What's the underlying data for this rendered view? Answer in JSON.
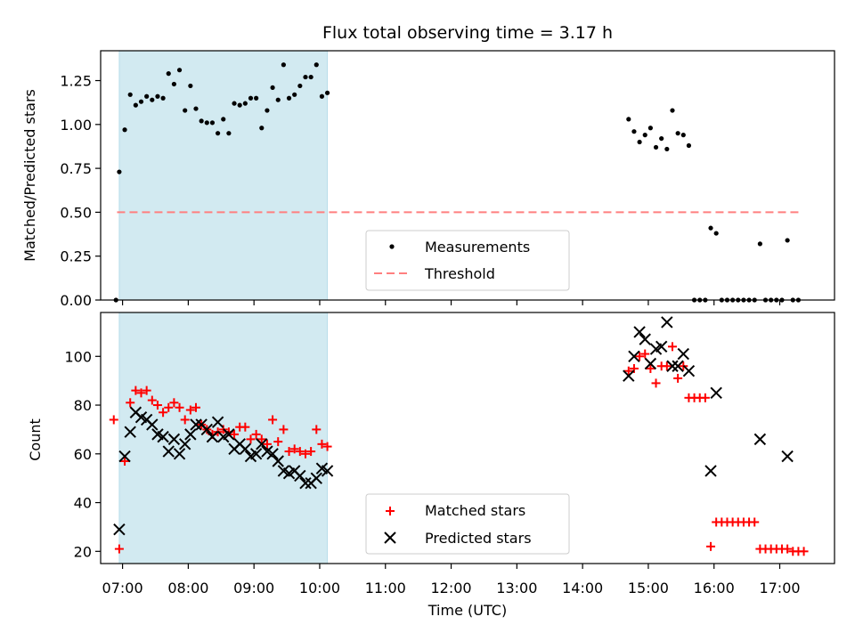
{
  "chart_data": [
    {
      "type": "scatter",
      "title": "Flux total observing time = 3.17 h",
      "xlabel": "",
      "ylabel": "Matched/Predicted stars",
      "xlim": [
        "06:40",
        "17:50"
      ],
      "ylim": [
        0,
        1.42
      ],
      "yticks": [
        "0.00",
        "0.25",
        "0.50",
        "0.75",
        "1.00",
        "1.25"
      ],
      "shaded_span": [
        "06:57",
        "10:07"
      ],
      "threshold": 0.5,
      "threshold_range": [
        "06:55",
        "17:20"
      ],
      "threshold_color": "#ff7f7f",
      "span_color": "#add8e6",
      "legend_position": "lower center",
      "legend": [
        "Measurements",
        "Threshold"
      ],
      "series": [
        {
          "name": "Measurements",
          "marker": "dot",
          "color": "#000000",
          "points": [
            [
              "06:54",
              0.0
            ],
            [
              "06:57",
              0.73
            ],
            [
              "07:02",
              0.97
            ],
            [
              "07:07",
              1.17
            ],
            [
              "07:12",
              1.11
            ],
            [
              "07:17",
              1.13
            ],
            [
              "07:22",
              1.16
            ],
            [
              "07:27",
              1.14
            ],
            [
              "07:32",
              1.16
            ],
            [
              "07:37",
              1.15
            ],
            [
              "07:42",
              1.29
            ],
            [
              "07:47",
              1.23
            ],
            [
              "07:52",
              1.31
            ],
            [
              "07:57",
              1.08
            ],
            [
              "08:02",
              1.22
            ],
            [
              "08:07",
              1.09
            ],
            [
              "08:12",
              1.02
            ],
            [
              "08:17",
              1.01
            ],
            [
              "08:22",
              1.01
            ],
            [
              "08:27",
              0.95
            ],
            [
              "08:32",
              1.03
            ],
            [
              "08:37",
              0.95
            ],
            [
              "08:42",
              1.12
            ],
            [
              "08:47",
              1.11
            ],
            [
              "08:52",
              1.12
            ],
            [
              "08:57",
              1.15
            ],
            [
              "09:02",
              1.15
            ],
            [
              "09:07",
              0.98
            ],
            [
              "09:12",
              1.08
            ],
            [
              "09:17",
              1.21
            ],
            [
              "09:22",
              1.14
            ],
            [
              "09:27",
              1.34
            ],
            [
              "09:32",
              1.15
            ],
            [
              "09:37",
              1.17
            ],
            [
              "09:42",
              1.22
            ],
            [
              "09:47",
              1.27
            ],
            [
              "09:52",
              1.27
            ],
            [
              "09:57",
              1.34
            ],
            [
              "10:02",
              1.16
            ],
            [
              "10:07",
              1.18
            ],
            [
              "14:42",
              1.03
            ],
            [
              "14:47",
              0.96
            ],
            [
              "14:52",
              0.9
            ],
            [
              "14:57",
              0.94
            ],
            [
              "15:02",
              0.98
            ],
            [
              "15:07",
              0.87
            ],
            [
              "15:12",
              0.92
            ],
            [
              "15:17",
              0.86
            ],
            [
              "15:22",
              1.08
            ],
            [
              "15:27",
              0.95
            ],
            [
              "15:32",
              0.94
            ],
            [
              "15:37",
              0.88
            ],
            [
              "15:42",
              0.0
            ],
            [
              "15:47",
              0.0
            ],
            [
              "15:52",
              0.0
            ],
            [
              "15:57",
              0.41
            ],
            [
              "16:02",
              0.38
            ],
            [
              "16:07",
              0.0
            ],
            [
              "16:12",
              0.0
            ],
            [
              "16:17",
              0.0
            ],
            [
              "16:22",
              0.0
            ],
            [
              "16:27",
              0.0
            ],
            [
              "16:32",
              0.0
            ],
            [
              "16:37",
              0.0
            ],
            [
              "16:42",
              0.32
            ],
            [
              "16:47",
              0.0
            ],
            [
              "16:52",
              0.0
            ],
            [
              "16:57",
              0.0
            ],
            [
              "17:02",
              0.0
            ],
            [
              "17:07",
              0.34
            ],
            [
              "17:12",
              0.0
            ],
            [
              "17:17",
              0.0
            ]
          ]
        }
      ]
    },
    {
      "type": "scatter",
      "title": "",
      "xlabel": "Time (UTC)",
      "ylabel": "Count",
      "xlim": [
        "06:40",
        "17:50"
      ],
      "ylim": [
        15,
        118
      ],
      "yticks": [
        "20",
        "40",
        "60",
        "80",
        "100"
      ],
      "xticks": [
        "07:00",
        "08:00",
        "09:00",
        "10:00",
        "11:00",
        "12:00",
        "13:00",
        "14:00",
        "15:00",
        "16:00",
        "17:00"
      ],
      "shaded_span": [
        "06:57",
        "10:07"
      ],
      "span_color": "#add8e6",
      "legend_position": "lower center",
      "legend": [
        "Matched stars",
        "Predicted stars"
      ],
      "series": [
        {
          "name": "Matched stars",
          "marker": "plus",
          "color": "#ff0000",
          "points": [
            [
              "06:52",
              74
            ],
            [
              "06:57",
              21
            ],
            [
              "07:02",
              57
            ],
            [
              "07:07",
              81
            ],
            [
              "07:12",
              86
            ],
            [
              "07:17",
              85
            ],
            [
              "07:22",
              86
            ],
            [
              "07:27",
              82
            ],
            [
              "07:32",
              80
            ],
            [
              "07:37",
              77
            ],
            [
              "07:42",
              79
            ],
            [
              "07:47",
              81
            ],
            [
              "07:52",
              79
            ],
            [
              "07:57",
              74
            ],
            [
              "08:02",
              78
            ],
            [
              "08:07",
              79
            ],
            [
              "08:12",
              72
            ],
            [
              "08:17",
              70
            ],
            [
              "08:22",
              68
            ],
            [
              "08:27",
              69
            ],
            [
              "08:32",
              70
            ],
            [
              "08:37",
              69
            ],
            [
              "08:42",
              68
            ],
            [
              "08:47",
              71
            ],
            [
              "08:52",
              71
            ],
            [
              "08:57",
              66
            ],
            [
              "09:02",
              68
            ],
            [
              "09:07",
              66
            ],
            [
              "09:12",
              64
            ],
            [
              "09:17",
              74
            ],
            [
              "09:22",
              65
            ],
            [
              "09:27",
              70
            ],
            [
              "09:32",
              61
            ],
            [
              "09:37",
              62
            ],
            [
              "09:42",
              61
            ],
            [
              "09:47",
              60
            ],
            [
              "09:52",
              61
            ],
            [
              "09:57",
              70
            ],
            [
              "10:02",
              64
            ],
            [
              "10:07",
              63
            ],
            [
              "14:42",
              94
            ],
            [
              "14:47",
              95
            ],
            [
              "14:52",
              100
            ],
            [
              "14:57",
              101
            ],
            [
              "15:02",
              95
            ],
            [
              "15:07",
              89
            ],
            [
              "15:12",
              96
            ],
            [
              "15:17",
              96
            ],
            [
              "15:22",
              104
            ],
            [
              "15:27",
              91
            ],
            [
              "15:32",
              96
            ],
            [
              "15:37",
              83
            ],
            [
              "15:42",
              83
            ],
            [
              "15:47",
              83
            ],
            [
              "15:52",
              83
            ],
            [
              "15:57",
              22
            ],
            [
              "16:02",
              32
            ],
            [
              "16:07",
              32
            ],
            [
              "16:12",
              32
            ],
            [
              "16:17",
              32
            ],
            [
              "16:22",
              32
            ],
            [
              "16:27",
              32
            ],
            [
              "16:32",
              32
            ],
            [
              "16:37",
              32
            ],
            [
              "16:42",
              21
            ],
            [
              "16:47",
              21
            ],
            [
              "16:52",
              21
            ],
            [
              "16:57",
              21
            ],
            [
              "17:02",
              21
            ],
            [
              "17:07",
              21
            ],
            [
              "17:12",
              20
            ],
            [
              "17:17",
              20
            ],
            [
              "17:22",
              20
            ]
          ]
        },
        {
          "name": "Predicted stars",
          "marker": "x",
          "color": "#000000",
          "points": [
            [
              "06:57",
              29
            ],
            [
              "07:02",
              59
            ],
            [
              "07:07",
              69
            ],
            [
              "07:12",
              77
            ],
            [
              "07:17",
              75
            ],
            [
              "07:22",
              74
            ],
            [
              "07:27",
              72
            ],
            [
              "07:32",
              68
            ],
            [
              "07:37",
              67
            ],
            [
              "07:42",
              61
            ],
            [
              "07:47",
              66
            ],
            [
              "07:52",
              60
            ],
            [
              "07:57",
              64
            ],
            [
              "08:02",
              68
            ],
            [
              "08:07",
              72
            ],
            [
              "08:12",
              72
            ],
            [
              "08:17",
              70
            ],
            [
              "08:22",
              67
            ],
            [
              "08:27",
              73
            ],
            [
              "08:32",
              67
            ],
            [
              "08:37",
              68
            ],
            [
              "08:42",
              62
            ],
            [
              "08:47",
              64
            ],
            [
              "08:52",
              62
            ],
            [
              "08:57",
              59
            ],
            [
              "09:02",
              60
            ],
            [
              "09:07",
              64
            ],
            [
              "09:12",
              61
            ],
            [
              "09:17",
              60
            ],
            [
              "09:22",
              57
            ],
            [
              "09:27",
              53
            ],
            [
              "09:32",
              52
            ],
            [
              "09:37",
              53
            ],
            [
              "09:42",
              51
            ],
            [
              "09:47",
              48
            ],
            [
              "09:52",
              48
            ],
            [
              "09:57",
              50
            ],
            [
              "10:02",
              54
            ],
            [
              "10:07",
              53
            ],
            [
              "14:42",
              92
            ],
            [
              "14:47",
              100
            ],
            [
              "14:52",
              110
            ],
            [
              "14:57",
              107
            ],
            [
              "15:02",
              97
            ],
            [
              "15:07",
              103
            ],
            [
              "15:12",
              104
            ],
            [
              "15:17",
              114
            ],
            [
              "15:22",
              96
            ],
            [
              "15:27",
              96
            ],
            [
              "15:32",
              101
            ],
            [
              "15:37",
              94
            ],
            [
              "15:57",
              53
            ],
            [
              "16:02",
              85
            ],
            [
              "16:42",
              66
            ],
            [
              "17:07",
              59
            ]
          ]
        }
      ]
    }
  ]
}
